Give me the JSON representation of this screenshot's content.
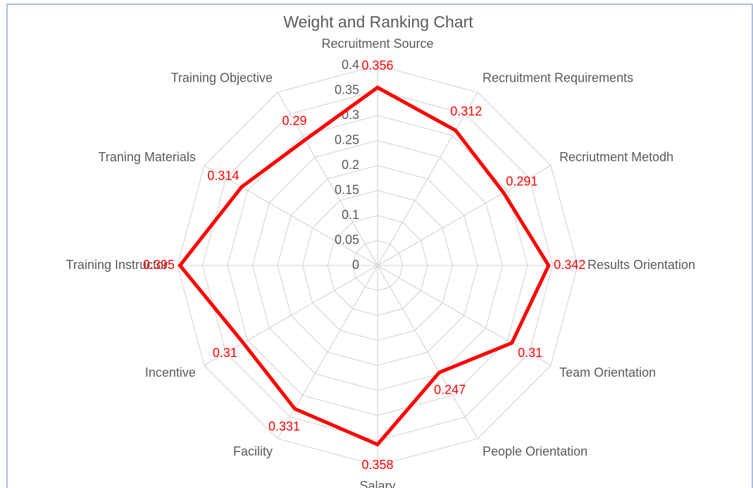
{
  "chart_data": {
    "type": "radar",
    "title": "Weight and Ranking Chart",
    "categories": [
      "Recruitment Source",
      "Recruitment Requirements",
      "Recriutment Metodh",
      "Results Orientation",
      "Team Orientation",
      "People Orientation",
      "Salary",
      "Facility",
      "Incentive",
      "Training Instructor",
      "Traning Materials",
      "Training Objective"
    ],
    "values": [
      0.356,
      0.312,
      0.291,
      0.342,
      0.31,
      0.247,
      0.358,
      0.331,
      0.31,
      0.395,
      0.314,
      0.29
    ],
    "color": "#ff0000",
    "ylim": [
      0,
      0.4
    ],
    "yticks": [
      0,
      0.05,
      0.1,
      0.15,
      0.2,
      0.25,
      0.3,
      0.35,
      0.4
    ],
    "grid": true
  }
}
